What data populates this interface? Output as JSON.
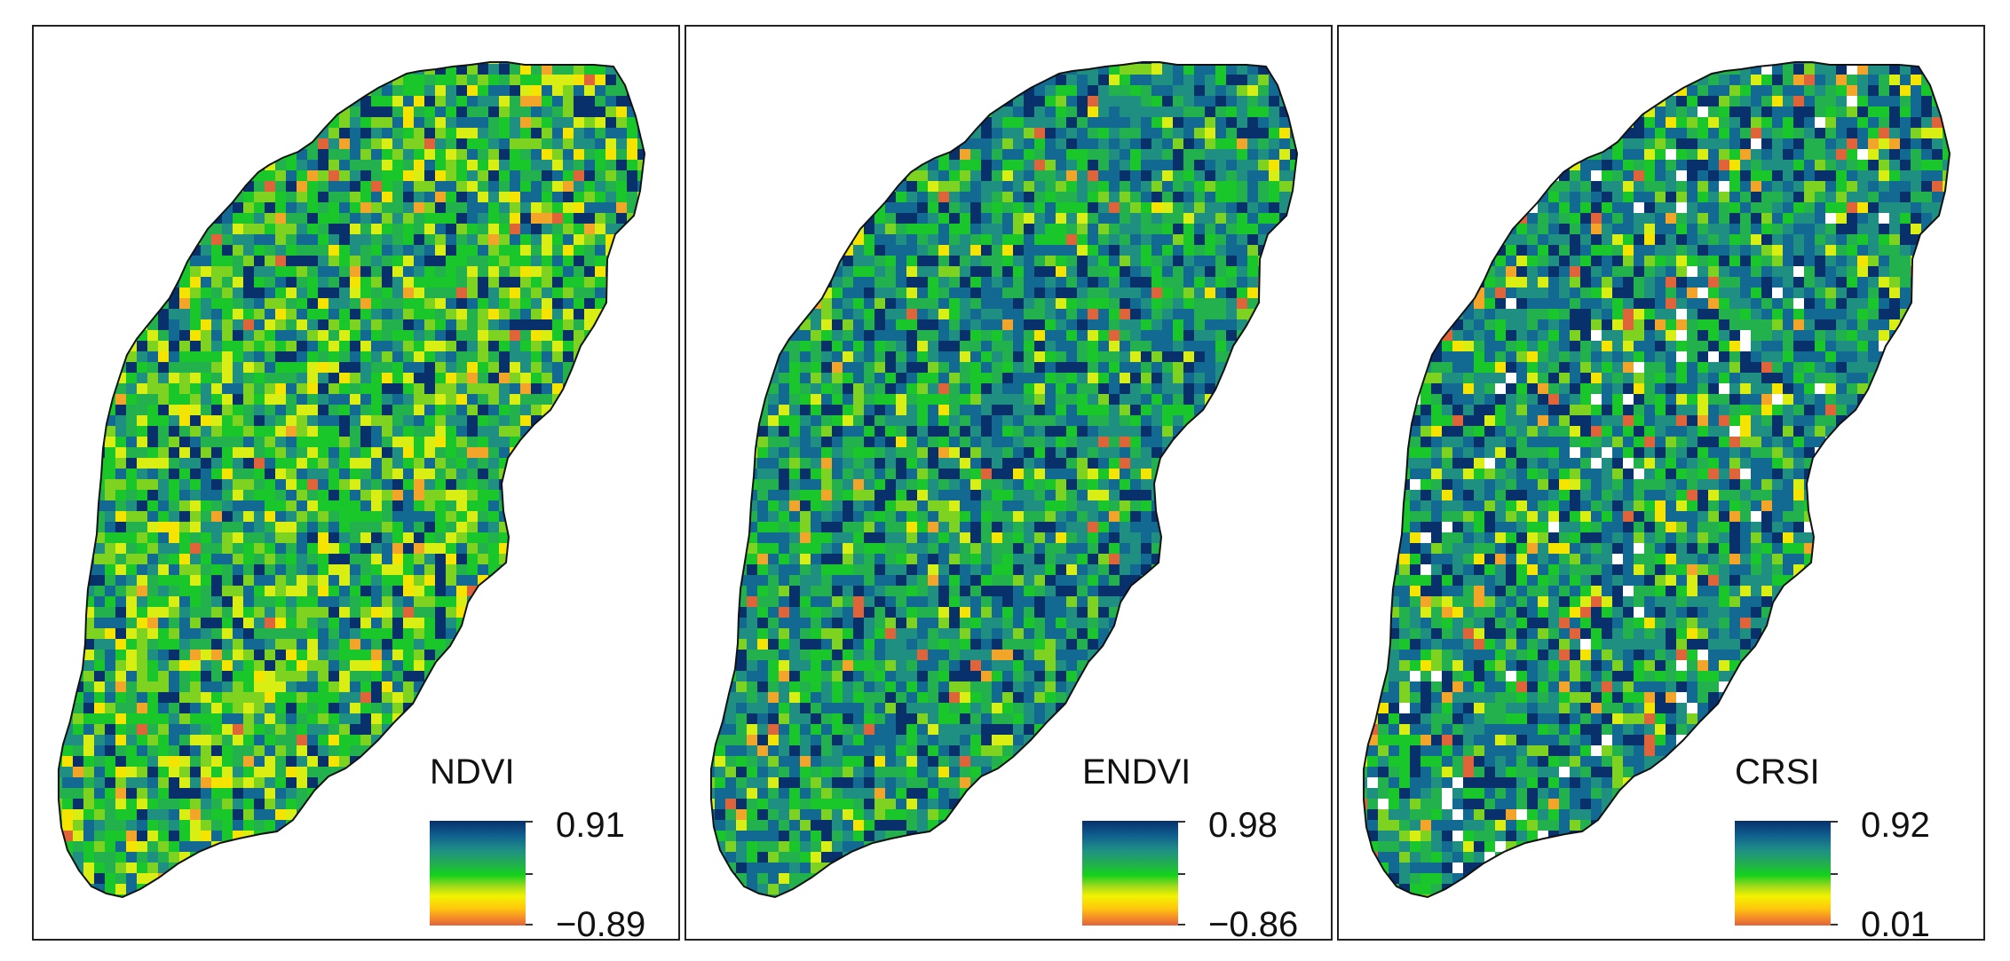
{
  "panels": [
    {
      "id": "ndvi",
      "legend": {
        "title": "NDVI",
        "max_label": "0.91",
        "min_label": "−0.89"
      },
      "palette": [
        "#08306b",
        "#126a92",
        "#1e8f80",
        "#22b14c",
        "#19c72a",
        "#7ed321",
        "#d9ee12",
        "#f5e400",
        "#f3a52a",
        "#e0643a"
      ],
      "dominant_tone": "green-yellow"
    },
    {
      "id": "endvi",
      "legend": {
        "title": "ENDVI",
        "max_label": "0.98",
        "min_label": "−0.86"
      },
      "palette": [
        "#08306b",
        "#126a92",
        "#1e8f80",
        "#22b14c",
        "#19c72a",
        "#7ed321",
        "#d9ee12",
        "#f5e400",
        "#f3a52a",
        "#e0643a"
      ],
      "dominant_tone": "teal-green"
    },
    {
      "id": "crsi",
      "legend": {
        "title": "CRSI",
        "max_label": "0.92",
        "min_label": "0.01"
      },
      "palette": [
        "#08306b",
        "#126a92",
        "#1e8f80",
        "#22b14c",
        "#19c72a",
        "#7ed321",
        "#d9ee12",
        "#f5e400",
        "#f3a52a",
        "#e0643a"
      ],
      "dominant_tone": "teal-green with white gaps"
    }
  ]
}
